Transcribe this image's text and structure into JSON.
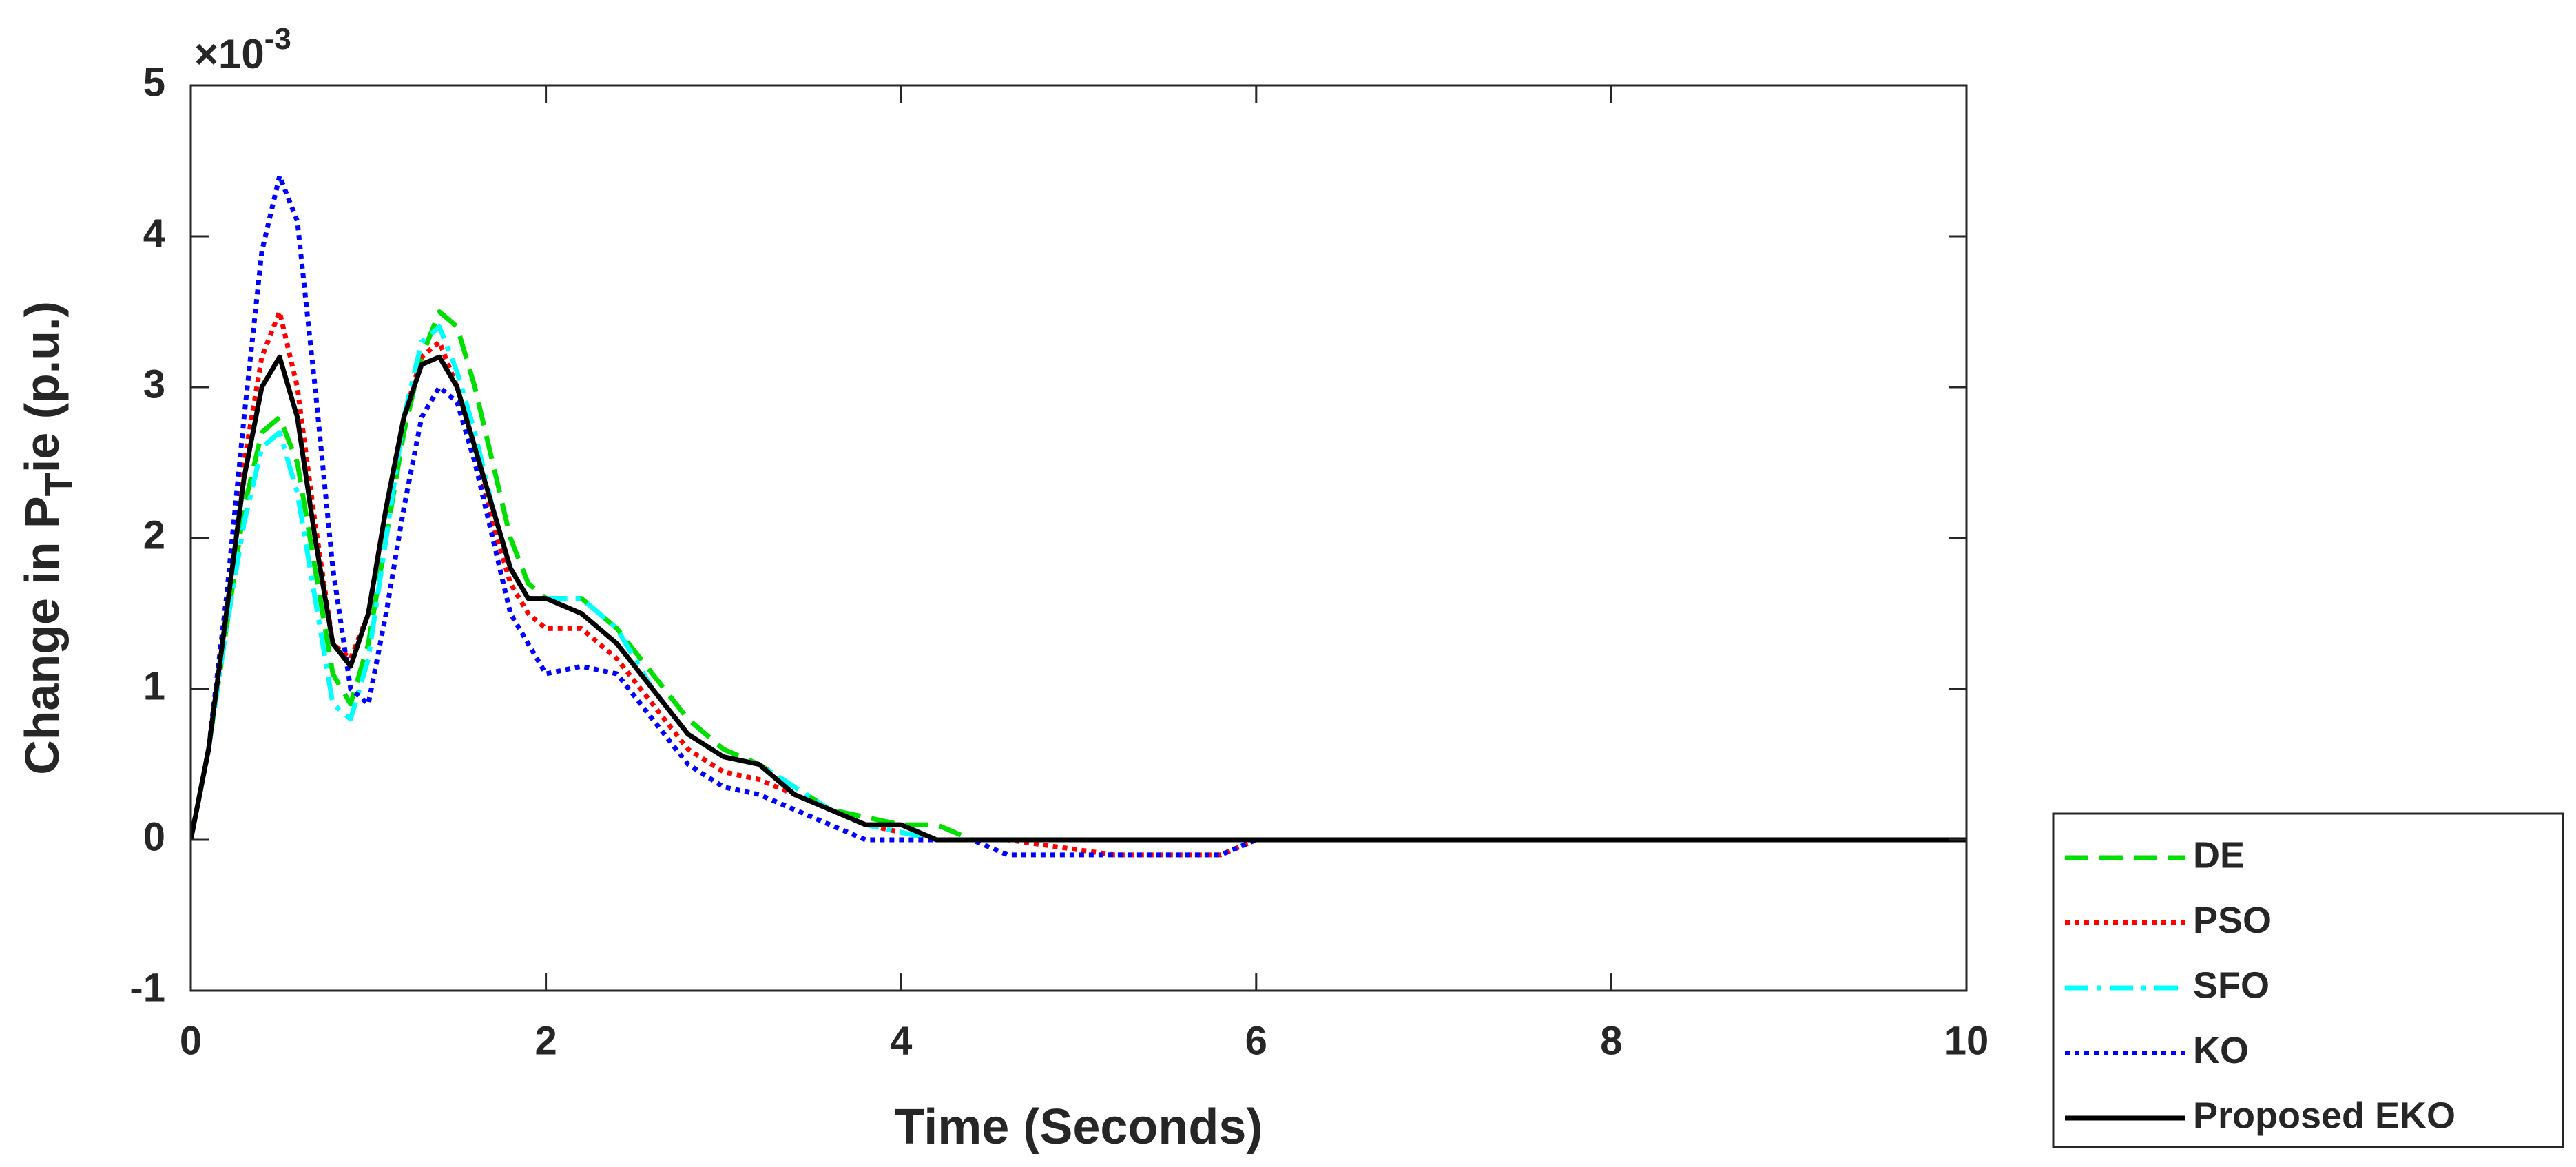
{
  "chart_data": {
    "type": "line",
    "xlabel": "Time (Seconds)",
    "ylabel_parts": [
      "Change in P",
      "T",
      "ie (p.u.)"
    ],
    "y_exponent_base": "×10",
    "y_exponent_power": "-3",
    "xlim": [
      0,
      10
    ],
    "xticks": [
      0,
      2,
      4,
      6,
      8,
      10
    ],
    "ylim": [
      -1,
      5
    ],
    "yticks": [
      -1,
      0,
      1,
      2,
      3,
      4,
      5
    ],
    "legend": "outside-bottom-right",
    "x": [
      0,
      0.1,
      0.2,
      0.3,
      0.4,
      0.5,
      0.6,
      0.7,
      0.8,
      0.9,
      1.0,
      1.1,
      1.2,
      1.3,
      1.4,
      1.5,
      1.6,
      1.7,
      1.8,
      1.9,
      2.0,
      2.2,
      2.4,
      2.6,
      2.8,
      3.0,
      3.2,
      3.4,
      3.6,
      3.8,
      4.0,
      4.2,
      4.4,
      4.6,
      5.2,
      5.8,
      6.0,
      10
    ],
    "series": [
      {
        "name": "DE",
        "color": "#00e000",
        "dash": "dashed",
        "values": [
          0,
          0.6,
          1.4,
          2.2,
          2.7,
          2.8,
          2.5,
          1.8,
          1.1,
          0.9,
          1.3,
          2.0,
          2.7,
          3.2,
          3.5,
          3.4,
          3.0,
          2.5,
          2.0,
          1.7,
          1.6,
          1.6,
          1.4,
          1.1,
          0.8,
          0.6,
          0.5,
          0.35,
          0.2,
          0.15,
          0.1,
          0.1,
          0,
          0,
          0,
          0,
          0,
          0
        ]
      },
      {
        "name": "PSO",
        "color": "#ff0000",
        "dash": "dotted",
        "values": [
          0,
          0.6,
          1.5,
          2.5,
          3.2,
          3.5,
          3.0,
          2.1,
          1.3,
          1.2,
          1.5,
          2.2,
          2.8,
          3.2,
          3.3,
          3.0,
          2.6,
          2.1,
          1.7,
          1.5,
          1.4,
          1.4,
          1.2,
          0.9,
          0.6,
          0.45,
          0.4,
          0.3,
          0.2,
          0.1,
          0.05,
          0,
          0,
          0,
          -0.1,
          -0.1,
          0,
          0
        ]
      },
      {
        "name": "SFO",
        "color": "#00ffff",
        "dash": "dashdot",
        "values": [
          0,
          0.6,
          1.4,
          2.1,
          2.6,
          2.7,
          2.3,
          1.6,
          0.9,
          0.8,
          1.2,
          2.0,
          2.8,
          3.3,
          3.4,
          3.1,
          2.7,
          2.2,
          1.8,
          1.6,
          1.6,
          1.6,
          1.4,
          1.0,
          0.7,
          0.55,
          0.5,
          0.35,
          0.2,
          0.1,
          0.05,
          0,
          0,
          0,
          0,
          0,
          0,
          0
        ]
      },
      {
        "name": "KO",
        "color": "#0000ff",
        "dash": "dotted",
        "values": [
          0,
          0.6,
          1.6,
          2.8,
          3.9,
          4.4,
          4.1,
          3.0,
          1.8,
          1.0,
          0.9,
          1.5,
          2.2,
          2.8,
          3.0,
          2.9,
          2.5,
          2.0,
          1.5,
          1.3,
          1.1,
          1.15,
          1.1,
          0.8,
          0.5,
          0.35,
          0.3,
          0.2,
          0.1,
          0,
          0,
          0,
          0,
          -0.1,
          -0.1,
          -0.1,
          0,
          0
        ]
      },
      {
        "name": "Proposed EKO",
        "color": "#000000",
        "dash": "solid",
        "values": [
          0,
          0.6,
          1.5,
          2.4,
          3.0,
          3.2,
          2.8,
          2.0,
          1.3,
          1.15,
          1.5,
          2.2,
          2.8,
          3.15,
          3.2,
          3.0,
          2.6,
          2.2,
          1.8,
          1.6,
          1.6,
          1.5,
          1.3,
          1.0,
          0.7,
          0.55,
          0.5,
          0.3,
          0.2,
          0.1,
          0.1,
          0,
          0,
          0,
          0,
          0,
          0,
          0
        ]
      }
    ]
  }
}
